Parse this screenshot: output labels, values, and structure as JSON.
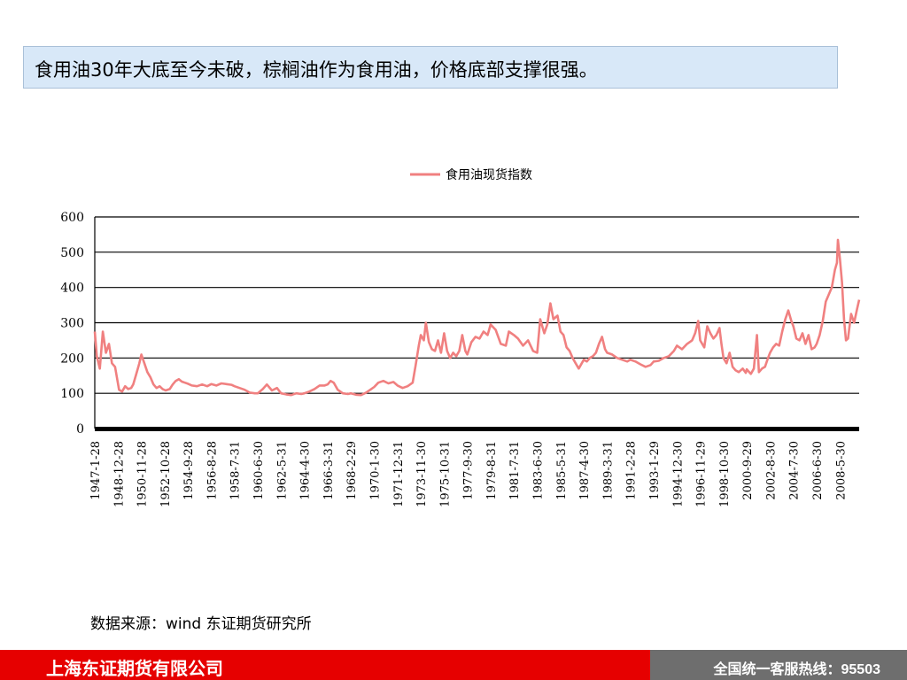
{
  "headline": "食用油30年大底至今未破，棕榈油作为食用油，价格底部支撑很强。",
  "source_note": "数据来源：wind   东证期货研究所",
  "footer": {
    "company": "上海东证期货有限公司",
    "hotline": "全国统一客服热线：95503"
  },
  "colors": {
    "series": "#f08080",
    "headline_bg": "#d8e8f8",
    "footer_red": "#e60000",
    "footer_gray": "#6e6e6e"
  },
  "chart_data": {
    "type": "line",
    "title": "",
    "xlabel": "",
    "ylabel": "",
    "ylim": [
      0,
      600
    ],
    "yticks": [
      "0",
      "100",
      "200",
      "300",
      "400",
      "500",
      "600"
    ],
    "grid": "horizontal",
    "legend_position": "top-center",
    "x_tick_labels": [
      "1947-1-28",
      "1948-12-28",
      "1950-11-28",
      "1952-10-28",
      "1954-9-28",
      "1956-8-28",
      "1958-7-31",
      "1960-6-30",
      "1962-5-31",
      "1964-4-30",
      "1966-3-31",
      "1968-2-29",
      "1970-1-30",
      "1971-12-31",
      "1973-11-30",
      "1975-10-31",
      "1977-9-30",
      "1979-8-31",
      "1981-7-31",
      "1983-6-30",
      "1985-5-31",
      "1987-4-30",
      "1989-3-31",
      "1991-2-28",
      "1993-1-29",
      "1994-12-30",
      "1996-11-29",
      "1998-10-30",
      "2000-9-29",
      "2002-8-30",
      "2004-7-30",
      "2006-6-30",
      "2008-5-30"
    ],
    "series": [
      {
        "name": "食用油现货指数",
        "points": [
          [
            "1947-1",
            275
          ],
          [
            "1947-3",
            205
          ],
          [
            "1947-6",
            170
          ],
          [
            "1947-9",
            275
          ],
          [
            "1947-12",
            215
          ],
          [
            "1948-3",
            240
          ],
          [
            "1948-6",
            185
          ],
          [
            "1948-9",
            175
          ],
          [
            "1949-1",
            110
          ],
          [
            "1949-4",
            105
          ],
          [
            "1949-7",
            120
          ],
          [
            "1949-10",
            112
          ],
          [
            "1950-1",
            115
          ],
          [
            "1950-3",
            125
          ],
          [
            "1950-6",
            155
          ],
          [
            "1950-9",
            185
          ],
          [
            "1950-11",
            210
          ],
          [
            "1951-2",
            185
          ],
          [
            "1951-5",
            160
          ],
          [
            "1951-8",
            145
          ],
          [
            "1951-11",
            125
          ],
          [
            "1952-2",
            115
          ],
          [
            "1952-5",
            120
          ],
          [
            "1952-8",
            112
          ],
          [
            "1952-11",
            108
          ],
          [
            "1953-3",
            112
          ],
          [
            "1953-6",
            125
          ],
          [
            "1953-9",
            135
          ],
          [
            "1953-12",
            140
          ],
          [
            "1954-3",
            133
          ],
          [
            "1954-6",
            130
          ],
          [
            "1954-9",
            127
          ],
          [
            "1955-1",
            122
          ],
          [
            "1955-6",
            120
          ],
          [
            "1955-11",
            125
          ],
          [
            "1956-4",
            120
          ],
          [
            "1956-8",
            126
          ],
          [
            "1957-1",
            122
          ],
          [
            "1957-6",
            128
          ],
          [
            "1957-11",
            126
          ],
          [
            "1958-4",
            124
          ],
          [
            "1958-7",
            120
          ],
          [
            "1958-12",
            115
          ],
          [
            "1959-5",
            110
          ],
          [
            "1959-10",
            102
          ],
          [
            "1960-3",
            100
          ],
          [
            "1960-6",
            100
          ],
          [
            "1960-11",
            112
          ],
          [
            "1961-3",
            125
          ],
          [
            "1961-8",
            108
          ],
          [
            "1962-1",
            115
          ],
          [
            "1962-5",
            100
          ],
          [
            "1962-10",
            97
          ],
          [
            "1963-3",
            95
          ],
          [
            "1963-8",
            100
          ],
          [
            "1964-1",
            98
          ],
          [
            "1964-4",
            100
          ],
          [
            "1964-9",
            105
          ],
          [
            "1965-2",
            112
          ],
          [
            "1965-7",
            122
          ],
          [
            "1965-12",
            122
          ],
          [
            "1966-3",
            125
          ],
          [
            "1966-6",
            135
          ],
          [
            "1966-9",
            130
          ],
          [
            "1967-1",
            110
          ],
          [
            "1967-6",
            100
          ],
          [
            "1967-11",
            98
          ],
          [
            "1968-2",
            100
          ],
          [
            "1968-7",
            96
          ],
          [
            "1968-12",
            95
          ],
          [
            "1969-5",
            102
          ],
          [
            "1969-10",
            112
          ],
          [
            "1970-1",
            118
          ],
          [
            "1970-5",
            130
          ],
          [
            "1970-10",
            135
          ],
          [
            "1971-3",
            128
          ],
          [
            "1971-8",
            132
          ],
          [
            "1971-12",
            122
          ],
          [
            "1972-5",
            115
          ],
          [
            "1972-10",
            120
          ],
          [
            "1973-3",
            130
          ],
          [
            "1973-6",
            180
          ],
          [
            "1973-9",
            235
          ],
          [
            "1973-11",
            265
          ],
          [
            "1974-2",
            250
          ],
          [
            "1974-4",
            300
          ],
          [
            "1974-7",
            245
          ],
          [
            "1974-10",
            225
          ],
          [
            "1975-1",
            220
          ],
          [
            "1975-4",
            250
          ],
          [
            "1975-7",
            215
          ],
          [
            "1975-10",
            270
          ],
          [
            "1976-1",
            220
          ],
          [
            "1976-4",
            200
          ],
          [
            "1976-7",
            215
          ],
          [
            "1976-10",
            205
          ],
          [
            "1977-1",
            220
          ],
          [
            "1977-4",
            265
          ],
          [
            "1977-7",
            220
          ],
          [
            "1977-9",
            210
          ],
          [
            "1978-1",
            245
          ],
          [
            "1978-5",
            260
          ],
          [
            "1978-9",
            255
          ],
          [
            "1979-1",
            275
          ],
          [
            "1979-5",
            265
          ],
          [
            "1979-8",
            295
          ],
          [
            "1980-1",
            280
          ],
          [
            "1980-6",
            240
          ],
          [
            "1980-11",
            235
          ],
          [
            "1981-2",
            275
          ],
          [
            "1981-7",
            265
          ],
          [
            "1981-11",
            255
          ],
          [
            "1982-4",
            235
          ],
          [
            "1982-9",
            250
          ],
          [
            "1983-2",
            220
          ],
          [
            "1983-6",
            215
          ],
          [
            "1983-9",
            310
          ],
          [
            "1984-1",
            270
          ],
          [
            "1984-4",
            295
          ],
          [
            "1984-7",
            355
          ],
          [
            "1984-10",
            310
          ],
          [
            "1985-2",
            320
          ],
          [
            "1985-5",
            275
          ],
          [
            "1985-8",
            265
          ],
          [
            "1985-11",
            230
          ],
          [
            "1986-2",
            220
          ],
          [
            "1986-5",
            200
          ],
          [
            "1986-8",
            185
          ],
          [
            "1986-11",
            170
          ],
          [
            "1987-2",
            185
          ],
          [
            "1987-4",
            195
          ],
          [
            "1987-7",
            190
          ],
          [
            "1987-10",
            200
          ],
          [
            "1988-1",
            205
          ],
          [
            "1988-4",
            215
          ],
          [
            "1988-7",
            240
          ],
          [
            "1988-10",
            260
          ],
          [
            "1989-1",
            225
          ],
          [
            "1989-3",
            215
          ],
          [
            "1989-8",
            210
          ],
          [
            "1990-1",
            200
          ],
          [
            "1990-6",
            195
          ],
          [
            "1990-11",
            190
          ],
          [
            "1991-2",
            195
          ],
          [
            "1991-7",
            190
          ],
          [
            "1991-12",
            182
          ],
          [
            "1992-5",
            175
          ],
          [
            "1992-10",
            180
          ],
          [
            "1993-1",
            190
          ],
          [
            "1993-6",
            192
          ],
          [
            "1993-11",
            200
          ],
          [
            "1994-4",
            205
          ],
          [
            "1994-9",
            220
          ],
          [
            "1994-12",
            235
          ],
          [
            "1995-5",
            225
          ],
          [
            "1995-10",
            240
          ],
          [
            "1996-3",
            250
          ],
          [
            "1996-6",
            270
          ],
          [
            "1996-9",
            305
          ],
          [
            "1996-11",
            250
          ],
          [
            "1997-3",
            230
          ],
          [
            "1997-6",
            290
          ],
          [
            "1997-9",
            270
          ],
          [
            "1997-12",
            255
          ],
          [
            "1998-3",
            265
          ],
          [
            "1998-6",
            285
          ],
          [
            "1998-8",
            240
          ],
          [
            "1998-10",
            200
          ],
          [
            "1999-1",
            185
          ],
          [
            "1999-4",
            215
          ],
          [
            "1999-7",
            175
          ],
          [
            "1999-10",
            165
          ],
          [
            "2000-1",
            160
          ],
          [
            "2000-5",
            170
          ],
          [
            "2000-8",
            158
          ],
          [
            "2000-9",
            168
          ],
          [
            "2001-1",
            155
          ],
          [
            "2001-4",
            170
          ],
          [
            "2001-7",
            265
          ],
          [
            "2001-9",
            160
          ],
          [
            "2001-12",
            170
          ],
          [
            "2002-3",
            175
          ],
          [
            "2002-6",
            200
          ],
          [
            "2002-8",
            215
          ],
          [
            "2002-11",
            230
          ],
          [
            "2003-2",
            240
          ],
          [
            "2003-5",
            235
          ],
          [
            "2003-8",
            275
          ],
          [
            "2003-11",
            310
          ],
          [
            "2004-2",
            335
          ],
          [
            "2004-5",
            305
          ],
          [
            "2004-7",
            290
          ],
          [
            "2004-10",
            255
          ],
          [
            "2005-1",
            250
          ],
          [
            "2005-4",
            270
          ],
          [
            "2005-7",
            240
          ],
          [
            "2005-10",
            265
          ],
          [
            "2006-1",
            225
          ],
          [
            "2006-4",
            230
          ],
          [
            "2006-6",
            240
          ],
          [
            "2006-9",
            265
          ],
          [
            "2006-12",
            305
          ],
          [
            "2007-3",
            360
          ],
          [
            "2007-6",
            380
          ],
          [
            "2007-9",
            400
          ],
          [
            "2007-12",
            450
          ],
          [
            "2008-2",
            470
          ],
          [
            "2008-3",
            535
          ],
          [
            "2008-5",
            480
          ],
          [
            "2008-7",
            415
          ],
          [
            "2008-9",
            310
          ],
          [
            "2008-11",
            250
          ],
          [
            "2009-1",
            255
          ],
          [
            "2009-4",
            325
          ],
          [
            "2009-7",
            300
          ],
          [
            "2009-10",
            340
          ],
          [
            "2009-12",
            365
          ]
        ]
      }
    ]
  }
}
